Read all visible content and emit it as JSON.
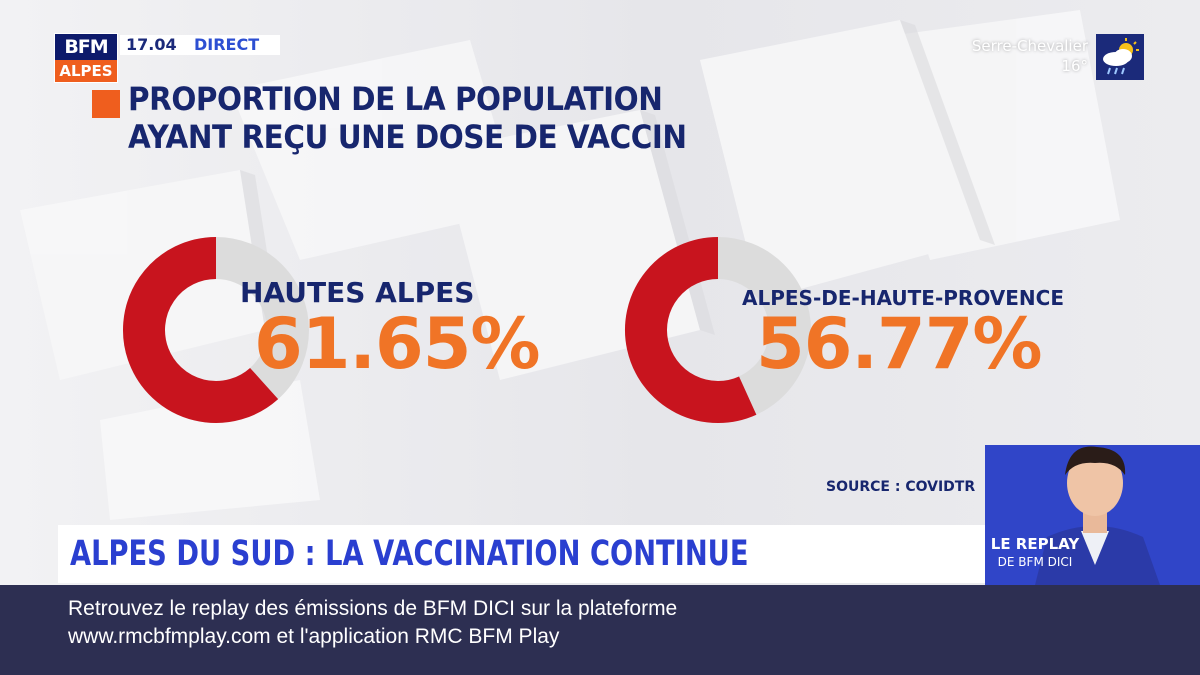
{
  "channel": {
    "logo_top": "BFM",
    "logo_bottom": "ALPES",
    "time": "17.04",
    "live_label": "DIRECT"
  },
  "weather": {
    "location": "Serre-Chevalier",
    "temperature": "16°",
    "icon": "sun-cloud-rain-icon"
  },
  "title": {
    "line1": "PROPORTION DE LA POPULATION",
    "line2": "AYANT REÇU UNE DOSE DE VACCIN"
  },
  "chart_data": [
    {
      "type": "pie",
      "region": "HAUTES ALPES",
      "value_label": "61.65%",
      "value": 61.65,
      "colors": {
        "filled": "#c8141e",
        "remaining": "#dcdcdc"
      }
    },
    {
      "type": "pie",
      "region": "ALPES-DE-HAUTE-PROVENCE",
      "value_label": "56.77%",
      "value": 56.77,
      "colors": {
        "filled": "#c8141e",
        "remaining": "#dcdcdc"
      }
    }
  ],
  "source": "SOURCE : COVIDTR",
  "presenter": {
    "replay_line1": "LE REPLAY",
    "replay_line2": "DE BFM DICI"
  },
  "headline": "ALPES DU SUD :  LA VACCINATION CONTINUE",
  "ticker": {
    "line1": "Retrouvez le replay des émissions de BFM DICI sur la plateforme",
    "line2": "www.rmcbfmplay.com et l'application RMC BFM Play"
  },
  "colors": {
    "navy": "#17266e",
    "orange": "#ef5e1e",
    "headline_blue": "#2a3fd0",
    "ticker_bg": "#2d2f52"
  }
}
